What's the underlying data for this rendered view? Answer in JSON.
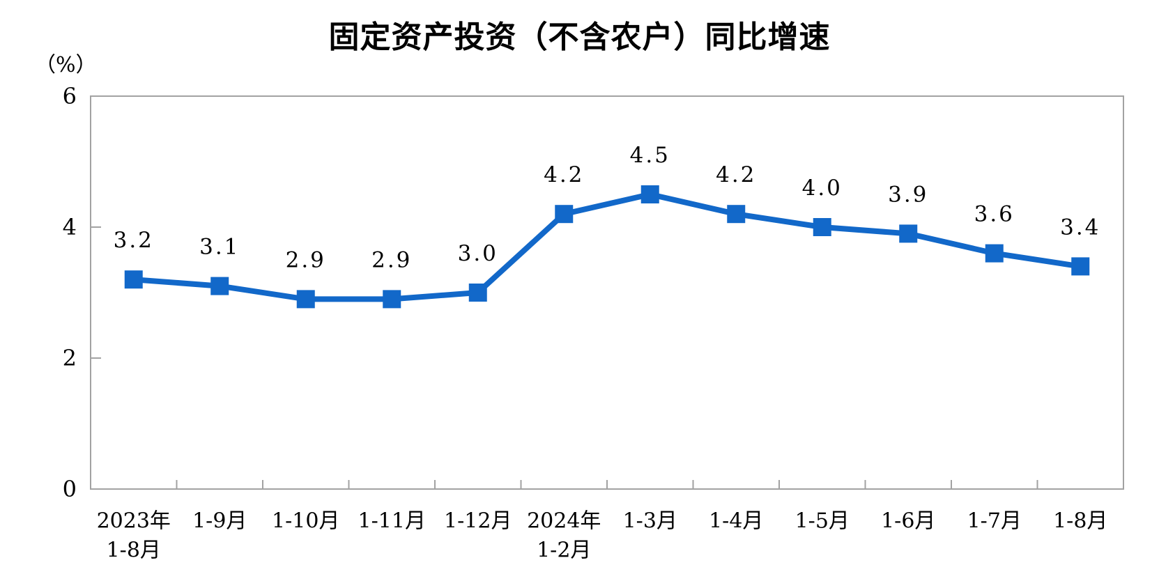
{
  "title": "固定资产投资（不含农户）同比增速",
  "unit_label": "（%）",
  "colors": {
    "line": "#1268C9",
    "axis": "#A2A2A2",
    "text": "#000000",
    "background": "#FFFFFF"
  },
  "chart_data": {
    "type": "line",
    "title": "固定资产投资（不含农户）同比增速",
    "ylabel": "（%）",
    "xlabel": "",
    "ylim": [
      0,
      6
    ],
    "yticks": [
      0,
      2,
      4,
      6
    ],
    "grid": false,
    "legend": false,
    "marker": "square",
    "categories": [
      [
        "2023年",
        "1-8月"
      ],
      [
        "1-9月"
      ],
      [
        "1-10月"
      ],
      [
        "1-11月"
      ],
      [
        "1-12月"
      ],
      [
        "2024年",
        "1-2月"
      ],
      [
        "1-3月"
      ],
      [
        "1-4月"
      ],
      [
        "1-5月"
      ],
      [
        "1-6月"
      ],
      [
        "1-7月"
      ],
      [
        "1-8月"
      ]
    ],
    "values": [
      3.2,
      3.1,
      2.9,
      2.9,
      3.0,
      4.2,
      4.5,
      4.2,
      4.0,
      3.9,
      3.6,
      3.4
    ],
    "data_labels": [
      "3.2",
      "3.1",
      "2.9",
      "2.9",
      "3.0",
      "4.2",
      "4.5",
      "4.2",
      "4.0",
      "3.9",
      "3.6",
      "3.4"
    ]
  }
}
